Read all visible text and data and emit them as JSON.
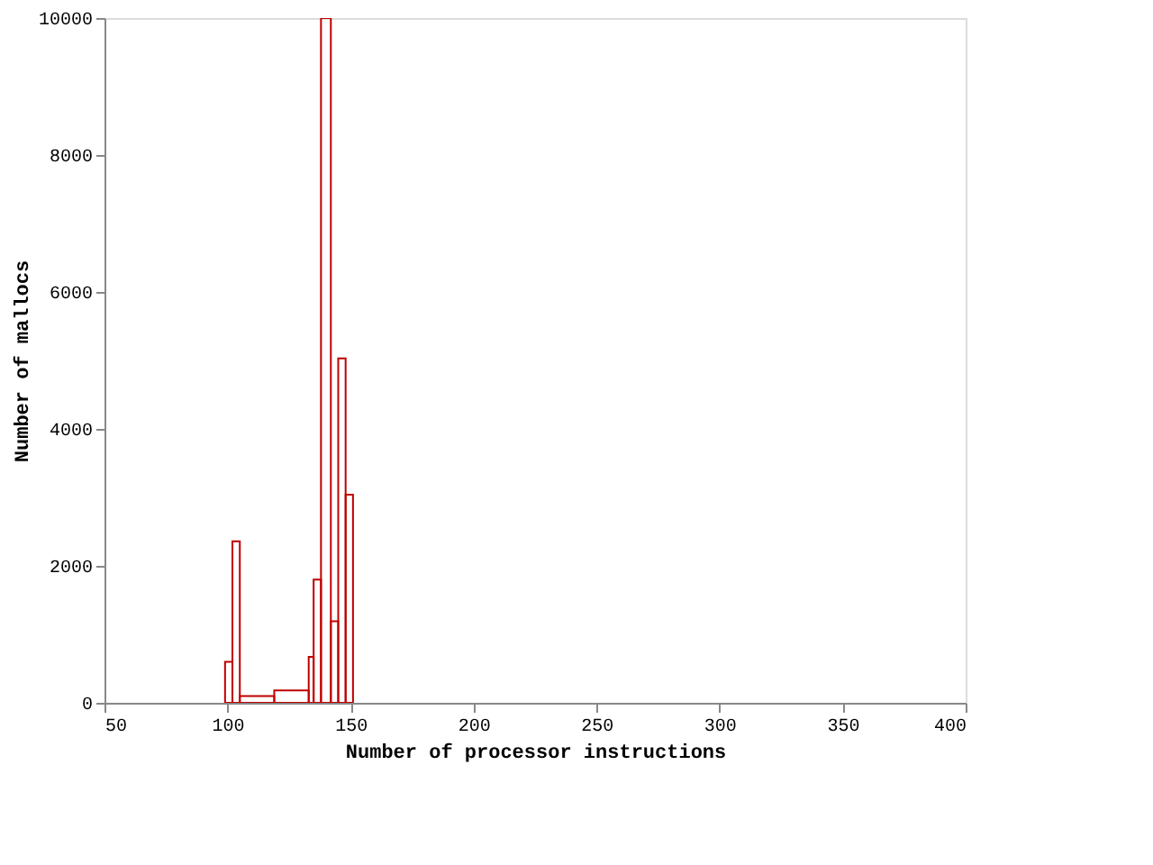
{
  "chart_data": {
    "type": "histogram",
    "xlabel": "Number of processor instructions",
    "ylabel": "Number of mallocs",
    "bins": [
      99,
      102,
      105,
      119,
      133,
      135,
      138,
      142,
      145,
      148,
      151
    ],
    "values": [
      600,
      2360,
      100,
      180,
      670,
      1800,
      10000,
      1190,
      5030,
      3040
    ],
    "color": "#c00000",
    "xlim": [
      50,
      400
    ],
    "xticks": [
      50,
      100,
      150,
      200,
      250,
      300,
      350,
      400
    ],
    "ylim": [
      0,
      10000
    ],
    "yticks": [
      0,
      2000,
      4000,
      6000,
      8000,
      10000
    ],
    "grid": false
  }
}
